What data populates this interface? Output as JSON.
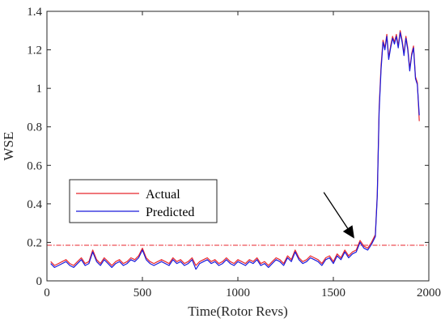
{
  "chart_data": {
    "type": "line",
    "xlabel": "Time(Rotor Revs)",
    "ylabel": "WSE",
    "xlim": [
      0,
      2000
    ],
    "ylim": [
      0,
      1.4
    ],
    "xticks": [
      0,
      500,
      1000,
      1500,
      2000
    ],
    "yticks": [
      0,
      0.2,
      0.4,
      0.6,
      0.8,
      1,
      1.2,
      1.4
    ],
    "xtick_labels": [
      "0",
      "500",
      "1000",
      "1500",
      "2000"
    ],
    "ytick_labels": [
      "0",
      "0.2",
      "0.4",
      "0.6",
      "0.8",
      "1",
      "1.2",
      "1.4"
    ],
    "grid": false,
    "legend_position": "left-middle",
    "threshold": {
      "value": 0.185,
      "color": "#e8262c",
      "style": "dash-dot"
    },
    "annotation": {
      "type": "arrow",
      "from": [
        1450,
        0.46
      ],
      "to": [
        1610,
        0.22
      ]
    },
    "series": [
      {
        "name": "Actual",
        "color": "#e8262c",
        "x": [
          20,
          40,
          60,
          80,
          100,
          120,
          140,
          160,
          180,
          200,
          220,
          240,
          260,
          280,
          300,
          320,
          340,
          360,
          380,
          400,
          420,
          440,
          460,
          480,
          500,
          520,
          540,
          560,
          580,
          600,
          620,
          640,
          660,
          680,
          700,
          720,
          740,
          760,
          780,
          800,
          820,
          840,
          860,
          880,
          900,
          920,
          940,
          960,
          980,
          1000,
          1020,
          1040,
          1060,
          1080,
          1100,
          1120,
          1140,
          1160,
          1180,
          1200,
          1220,
          1240,
          1260,
          1280,
          1300,
          1320,
          1340,
          1360,
          1380,
          1400,
          1420,
          1440,
          1460,
          1480,
          1500,
          1520,
          1540,
          1560,
          1580,
          1600,
          1620,
          1640,
          1660,
          1680,
          1700,
          1720,
          1730,
          1740,
          1750,
          1760,
          1770,
          1780,
          1790,
          1800,
          1810,
          1820,
          1830,
          1840,
          1850,
          1860,
          1870,
          1880,
          1890,
          1900,
          1910,
          1920,
          1930,
          1940,
          1950
        ],
        "y": [
          0.1,
          0.08,
          0.09,
          0.1,
          0.11,
          0.09,
          0.08,
          0.1,
          0.12,
          0.09,
          0.1,
          0.16,
          0.11,
          0.09,
          0.12,
          0.1,
          0.08,
          0.1,
          0.11,
          0.09,
          0.1,
          0.12,
          0.11,
          0.13,
          0.17,
          0.12,
          0.1,
          0.09,
          0.1,
          0.11,
          0.1,
          0.09,
          0.12,
          0.1,
          0.11,
          0.09,
          0.1,
          0.12,
          0.08,
          0.1,
          0.11,
          0.12,
          0.1,
          0.11,
          0.09,
          0.1,
          0.12,
          0.1,
          0.09,
          0.11,
          0.1,
          0.09,
          0.11,
          0.1,
          0.12,
          0.09,
          0.1,
          0.08,
          0.1,
          0.12,
          0.11,
          0.09,
          0.13,
          0.11,
          0.16,
          0.12,
          0.1,
          0.11,
          0.13,
          0.12,
          0.11,
          0.09,
          0.12,
          0.13,
          0.1,
          0.14,
          0.12,
          0.16,
          0.13,
          0.15,
          0.16,
          0.21,
          0.18,
          0.17,
          0.2,
          0.24,
          0.45,
          0.9,
          1.12,
          1.25,
          1.21,
          1.28,
          1.16,
          1.22,
          1.27,
          1.24,
          1.28,
          1.22,
          1.3,
          1.25,
          1.18,
          1.27,
          1.21,
          1.1,
          1.18,
          1.22,
          1.06,
          1.03,
          0.83
        ]
      },
      {
        "name": "Predicted",
        "color": "#1a1adb",
        "x": [
          20,
          40,
          60,
          80,
          100,
          120,
          140,
          160,
          180,
          200,
          220,
          240,
          260,
          280,
          300,
          320,
          340,
          360,
          380,
          400,
          420,
          440,
          460,
          480,
          500,
          520,
          540,
          560,
          580,
          600,
          620,
          640,
          660,
          680,
          700,
          720,
          740,
          760,
          780,
          800,
          820,
          840,
          860,
          880,
          900,
          920,
          940,
          960,
          980,
          1000,
          1020,
          1040,
          1060,
          1080,
          1100,
          1120,
          1140,
          1160,
          1180,
          1200,
          1220,
          1240,
          1260,
          1280,
          1300,
          1320,
          1340,
          1360,
          1380,
          1400,
          1420,
          1440,
          1460,
          1480,
          1500,
          1520,
          1540,
          1560,
          1580,
          1600,
          1620,
          1640,
          1660,
          1680,
          1700,
          1720,
          1730,
          1740,
          1750,
          1760,
          1770,
          1780,
          1790,
          1800,
          1810,
          1820,
          1830,
          1840,
          1850,
          1860,
          1870,
          1880,
          1890,
          1900,
          1910,
          1920,
          1930,
          1940,
          1950
        ],
        "y": [
          0.09,
          0.07,
          0.08,
          0.09,
          0.1,
          0.08,
          0.07,
          0.09,
          0.11,
          0.08,
          0.09,
          0.15,
          0.1,
          0.08,
          0.11,
          0.09,
          0.07,
          0.09,
          0.1,
          0.08,
          0.09,
          0.11,
          0.1,
          0.12,
          0.16,
          0.11,
          0.09,
          0.08,
          0.09,
          0.1,
          0.09,
          0.08,
          0.11,
          0.09,
          0.1,
          0.08,
          0.09,
          0.11,
          0.06,
          0.09,
          0.1,
          0.11,
          0.09,
          0.1,
          0.08,
          0.09,
          0.11,
          0.09,
          0.08,
          0.1,
          0.09,
          0.08,
          0.1,
          0.09,
          0.11,
          0.08,
          0.09,
          0.07,
          0.09,
          0.11,
          0.1,
          0.08,
          0.12,
          0.1,
          0.15,
          0.11,
          0.09,
          0.1,
          0.12,
          0.11,
          0.1,
          0.08,
          0.11,
          0.12,
          0.09,
          0.13,
          0.11,
          0.15,
          0.12,
          0.14,
          0.15,
          0.2,
          0.17,
          0.16,
          0.19,
          0.23,
          0.44,
          0.88,
          1.1,
          1.24,
          1.2,
          1.27,
          1.15,
          1.21,
          1.26,
          1.23,
          1.27,
          1.21,
          1.29,
          1.24,
          1.17,
          1.26,
          1.2,
          1.09,
          1.17,
          1.21,
          1.05,
          1.02,
          0.86
        ]
      }
    ]
  }
}
